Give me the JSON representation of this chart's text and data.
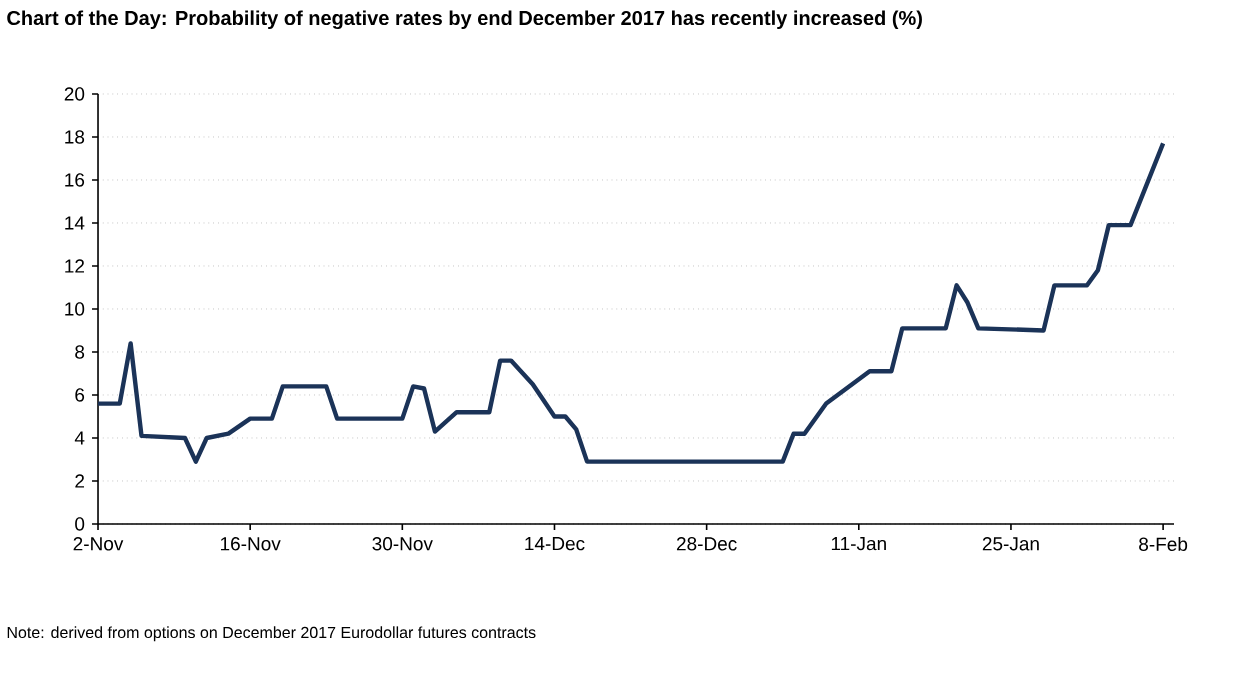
{
  "chart_data": {
    "type": "line",
    "title": "Chart of the Day: Probability of negative rates by end December 2017 has recently increased (%)",
    "x": [
      "2016-11-02",
      "2016-11-04",
      "2016-11-05",
      "2016-11-06",
      "2016-11-10",
      "2016-11-11",
      "2016-11-12",
      "2016-11-14",
      "2016-11-16",
      "2016-11-18",
      "2016-11-19",
      "2016-11-23",
      "2016-11-24",
      "2016-11-30",
      "2016-12-01",
      "2016-12-02",
      "2016-12-03",
      "2016-12-05",
      "2016-12-08",
      "2016-12-09",
      "2016-12-10",
      "2016-12-12",
      "2016-12-14",
      "2016-12-15",
      "2016-12-16",
      "2016-12-17",
      "2017-01-04",
      "2017-01-05",
      "2017-01-06",
      "2017-01-08",
      "2017-01-12",
      "2017-01-14",
      "2017-01-15",
      "2017-01-19",
      "2017-01-20",
      "2017-01-21",
      "2017-01-22",
      "2017-01-28",
      "2017-01-29",
      "2017-02-01",
      "2017-02-02",
      "2017-02-03",
      "2017-02-05",
      "2017-02-08"
    ],
    "values": [
      5.6,
      5.6,
      8.4,
      4.1,
      4.0,
      2.9,
      4.0,
      4.2,
      4.9,
      4.9,
      6.4,
      6.4,
      4.9,
      4.9,
      6.4,
      6.3,
      4.3,
      5.2,
      5.2,
      7.6,
      7.6,
      6.5,
      5.0,
      5.0,
      4.4,
      2.9,
      2.9,
      4.2,
      4.2,
      5.6,
      7.1,
      7.1,
      9.1,
      9.1,
      11.1,
      10.3,
      9.1,
      9.0,
      11.1,
      11.1,
      11.8,
      13.9,
      13.9,
      17.7
    ],
    "color": "#1b3358",
    "line_style": "solid",
    "marker": "none",
    "xlim": [
      "2016-11-02",
      "2017-02-09"
    ],
    "xticks": [
      {
        "value": "2016-11-02",
        "label": "2-Nov"
      },
      {
        "value": "2016-11-16",
        "label": "16-Nov"
      },
      {
        "value": "2016-11-30",
        "label": "30-Nov"
      },
      {
        "value": "2016-12-14",
        "label": "14-Dec"
      },
      {
        "value": "2016-12-28",
        "label": "28-Dec"
      },
      {
        "value": "2017-01-11",
        "label": "11-Jan"
      },
      {
        "value": "2017-01-25",
        "label": "25-Jan"
      },
      {
        "value": "2017-02-08",
        "label": "8-Feb"
      }
    ],
    "ylim": [
      0,
      20
    ],
    "yticks": [
      0,
      2,
      4,
      6,
      8,
      10,
      12,
      14,
      16,
      18,
      20
    ],
    "grid": "y",
    "annotations": [
      "Note: derived from options on December 2017 Eurodollar futures contracts"
    ]
  }
}
